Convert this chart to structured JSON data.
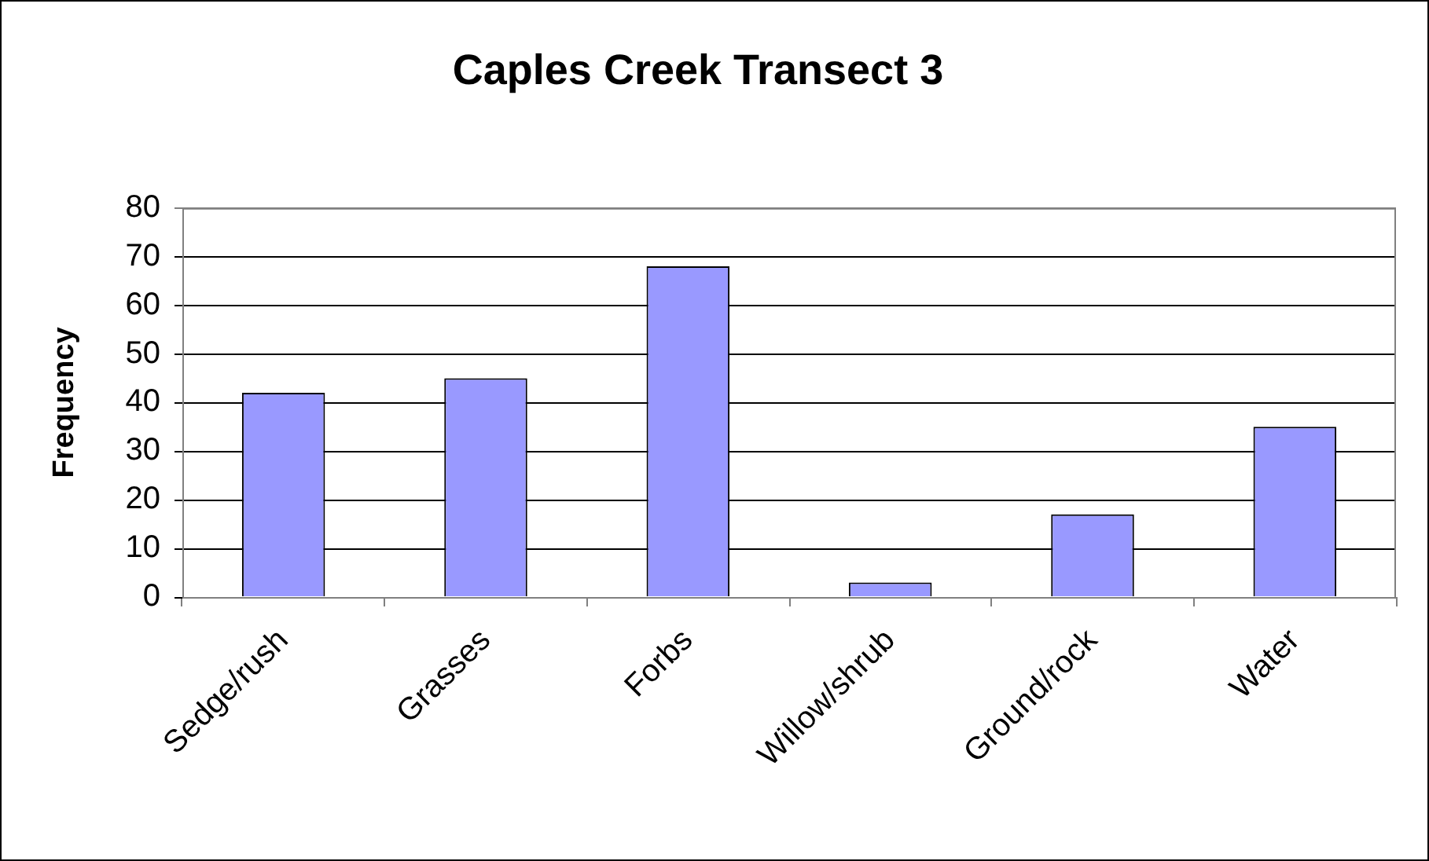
{
  "chart_data": {
    "type": "bar",
    "title": "Caples Creek Transect 3",
    "ylabel": "Frequency",
    "categories": [
      "Sedge/rush",
      "Grasses",
      "Forbs",
      "Willow/shrub",
      "Ground/rock",
      "Water"
    ],
    "values": [
      42,
      45,
      68,
      3,
      17,
      35
    ],
    "color": "#9999ff",
    "ylim": [
      0,
      80
    ],
    "yticks": [
      0,
      10,
      20,
      30,
      40,
      50,
      60,
      70,
      80
    ],
    "grid": "y",
    "legend": false
  }
}
